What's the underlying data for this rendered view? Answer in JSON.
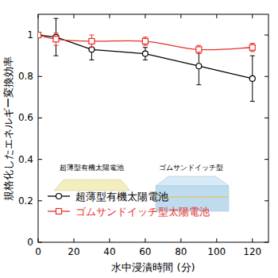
{
  "chart_data": {
    "type": "line",
    "x_label": "水中浸漬時間 (分)",
    "y_label": "規格化したエネルギー変換効率",
    "x": [
      0,
      10,
      30,
      60,
      90,
      120
    ],
    "series": [
      {
        "name": "超薄型有機太陽電池",
        "color": "#000000",
        "marker": "circle",
        "line_style": "solid",
        "values": [
          1.0,
          0.99,
          0.93,
          0.91,
          0.85,
          0.79
        ],
        "errors": [
          0,
          0.09,
          0.05,
          0.03,
          0.09,
          0.11
        ]
      },
      {
        "name": "ゴムサンドイッチ型太陽電池",
        "color": "#e8302a",
        "marker": "square",
        "line_style": "smooth",
        "values": [
          1.0,
          0.98,
          0.97,
          0.97,
          0.93,
          0.94
        ],
        "errors": [
          0,
          0.03,
          0.03,
          0.02,
          0.02,
          0.02
        ]
      }
    ],
    "annotations": [
      "超薄型有機太陽電池",
      "ゴムサンドイッチ型"
    ],
    "xlim": [
      0,
      129
    ],
    "xticks": [
      0,
      20,
      40,
      60,
      80,
      100,
      120
    ],
    "ylim": [
      0,
      1.1
    ],
    "yticks": [
      0,
      0.2,
      0.4,
      0.6,
      0.8,
      1
    ],
    "legend": "lower left",
    "grid": false
  }
}
